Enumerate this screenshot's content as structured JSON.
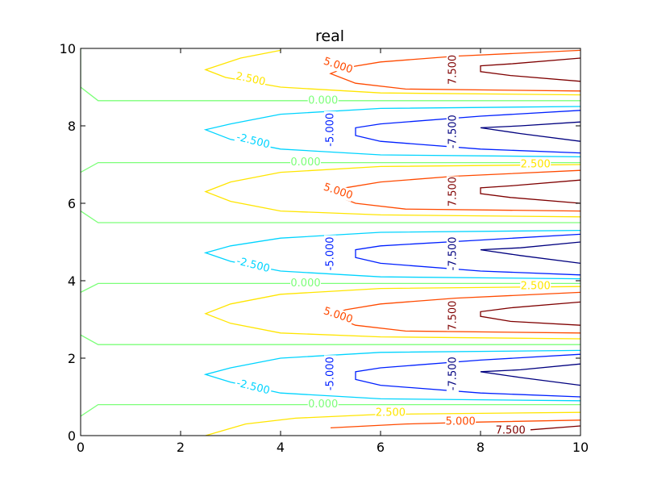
{
  "chart_data": {
    "type": "contour",
    "title": "real",
    "xlim": [
      0,
      10
    ],
    "ylim": [
      0,
      10
    ],
    "x_ticks": [
      "0",
      "2",
      "4",
      "6",
      "8",
      "10"
    ],
    "y_ticks": [
      "0",
      "2",
      "4",
      "6",
      "8",
      "10"
    ],
    "grid": false,
    "legend": "none",
    "levels": [
      {
        "level": -7.5,
        "color": "#00007f",
        "label": "-7.500"
      },
      {
        "level": -5.0,
        "color": "#0020ff",
        "label": "-5.000"
      },
      {
        "level": -2.5,
        "color": "#00d4ff",
        "label": "-2.500"
      },
      {
        "level": 0.0,
        "color": "#7cff79",
        "label": "0.000"
      },
      {
        "level": 2.5,
        "color": "#ffe500",
        "label": "2.500"
      },
      {
        "level": 5.0,
        "color": "#ff4a00",
        "label": "5.000"
      },
      {
        "level": 7.5,
        "color": "#7f0000",
        "label": "7.500"
      }
    ],
    "contour_lines": [
      {
        "level": 0.0,
        "points": [
          [
            0.0,
            10.0
          ],
          [
            0.0,
            9.0
          ],
          [
            0.35,
            8.65
          ],
          [
            10.0,
            8.65
          ]
        ]
      },
      {
        "level": 0.0,
        "points": [
          [
            0.0,
            6.8
          ],
          [
            0.35,
            7.05
          ],
          [
            10.0,
            7.05
          ]
        ]
      },
      {
        "level": 0.0,
        "points": [
          [
            0.0,
            5.8
          ],
          [
            0.35,
            5.5
          ],
          [
            10.0,
            5.5
          ]
        ]
      },
      {
        "level": 0.0,
        "points": [
          [
            0.0,
            3.7
          ],
          [
            0.35,
            3.93
          ],
          [
            10.0,
            3.93
          ]
        ]
      },
      {
        "level": 0.0,
        "points": [
          [
            0.0,
            2.6
          ],
          [
            0.35,
            2.35
          ],
          [
            10.0,
            2.35
          ]
        ]
      },
      {
        "level": 0.0,
        "points": [
          [
            0.0,
            0.5
          ],
          [
            0.35,
            0.8
          ],
          [
            10.0,
            0.8
          ]
        ]
      },
      {
        "level": 2.5,
        "points": [
          [
            4.0,
            9.95
          ],
          [
            3.2,
            9.75
          ],
          [
            2.5,
            9.45
          ],
          [
            2.9,
            9.25
          ],
          [
            4.0,
            9.0
          ],
          [
            6.0,
            8.85
          ],
          [
            10.0,
            8.8
          ]
        ]
      },
      {
        "level": 2.5,
        "points": [
          [
            10.0,
            7.0
          ],
          [
            6.0,
            6.95
          ],
          [
            4.0,
            6.8
          ],
          [
            3.0,
            6.55
          ],
          [
            2.5,
            6.3
          ],
          [
            3.0,
            6.05
          ],
          [
            4.0,
            5.8
          ],
          [
            6.0,
            5.7
          ],
          [
            10.0,
            5.65
          ]
        ]
      },
      {
        "level": 2.5,
        "points": [
          [
            10.0,
            3.85
          ],
          [
            6.0,
            3.8
          ],
          [
            4.0,
            3.65
          ],
          [
            3.0,
            3.4
          ],
          [
            2.5,
            3.15
          ],
          [
            3.0,
            2.9
          ],
          [
            4.0,
            2.65
          ],
          [
            6.0,
            2.55
          ],
          [
            10.0,
            2.5
          ]
        ]
      },
      {
        "level": 2.5,
        "points": [
          [
            2.5,
            0.0
          ],
          [
            3.3,
            0.3
          ],
          [
            4.3,
            0.45
          ],
          [
            6.0,
            0.55
          ],
          [
            10.0,
            0.6
          ]
        ]
      },
      {
        "level": -2.5,
        "points": [
          [
            10.0,
            8.5
          ],
          [
            6.0,
            8.45
          ],
          [
            4.0,
            8.3
          ],
          [
            3.0,
            8.05
          ],
          [
            2.5,
            7.9
          ],
          [
            3.0,
            7.65
          ],
          [
            4.0,
            7.4
          ],
          [
            6.0,
            7.25
          ],
          [
            10.0,
            7.2
          ]
        ]
      },
      {
        "level": -2.5,
        "points": [
          [
            10.0,
            5.3
          ],
          [
            6.0,
            5.25
          ],
          [
            4.0,
            5.1
          ],
          [
            3.0,
            4.9
          ],
          [
            2.5,
            4.72
          ],
          [
            3.0,
            4.5
          ],
          [
            4.0,
            4.25
          ],
          [
            6.0,
            4.1
          ],
          [
            10.0,
            4.05
          ]
        ]
      },
      {
        "level": -2.5,
        "points": [
          [
            10.0,
            2.2
          ],
          [
            6.0,
            2.15
          ],
          [
            4.0,
            2.0
          ],
          [
            3.0,
            1.75
          ],
          [
            2.5,
            1.58
          ],
          [
            3.0,
            1.38
          ],
          [
            4.0,
            1.1
          ],
          [
            6.0,
            0.95
          ],
          [
            10.0,
            0.9
          ]
        ]
      },
      {
        "level": 5.0,
        "points": [
          [
            10.0,
            9.95
          ],
          [
            7.5,
            9.8
          ],
          [
            6.0,
            9.65
          ],
          [
            5.3,
            9.5
          ],
          [
            5.0,
            9.35
          ],
          [
            5.5,
            9.1
          ],
          [
            6.5,
            8.95
          ],
          [
            10.0,
            8.9
          ]
        ]
      },
      {
        "level": 5.0,
        "points": [
          [
            10.0,
            6.85
          ],
          [
            7.5,
            6.7
          ],
          [
            6.0,
            6.55
          ],
          [
            5.3,
            6.4
          ],
          [
            5.0,
            6.25
          ],
          [
            5.5,
            6.0
          ],
          [
            6.5,
            5.85
          ],
          [
            10.0,
            5.8
          ]
        ]
      },
      {
        "level": 5.0,
        "points": [
          [
            10.0,
            3.7
          ],
          [
            7.5,
            3.55
          ],
          [
            6.0,
            3.4
          ],
          [
            5.3,
            3.25
          ],
          [
            5.0,
            3.1
          ],
          [
            5.5,
            2.85
          ],
          [
            6.5,
            2.7
          ],
          [
            10.0,
            2.65
          ]
        ]
      },
      {
        "level": 5.0,
        "points": [
          [
            5.0,
            0.2
          ],
          [
            6.5,
            0.3
          ],
          [
            8.0,
            0.35
          ],
          [
            10.0,
            0.4
          ]
        ]
      },
      {
        "level": -5.0,
        "points": [
          [
            10.0,
            8.4
          ],
          [
            8.0,
            8.25
          ],
          [
            6.0,
            8.05
          ],
          [
            5.5,
            7.95
          ],
          [
            5.5,
            7.75
          ],
          [
            6.0,
            7.6
          ],
          [
            8.0,
            7.4
          ],
          [
            10.0,
            7.3
          ]
        ]
      },
      {
        "level": -5.0,
        "points": [
          [
            10.0,
            5.2
          ],
          [
            8.0,
            5.05
          ],
          [
            6.0,
            4.9
          ],
          [
            5.5,
            4.8
          ],
          [
            5.5,
            4.6
          ],
          [
            6.0,
            4.45
          ],
          [
            8.0,
            4.25
          ],
          [
            10.0,
            4.15
          ]
        ]
      },
      {
        "level": -5.0,
        "points": [
          [
            10.0,
            2.1
          ],
          [
            8.0,
            1.95
          ],
          [
            6.0,
            1.75
          ],
          [
            5.5,
            1.65
          ],
          [
            5.5,
            1.45
          ],
          [
            6.0,
            1.3
          ],
          [
            8.0,
            1.1
          ],
          [
            10.0,
            1.0
          ]
        ]
      },
      {
        "level": 7.5,
        "points": [
          [
            10.0,
            9.75
          ],
          [
            8.6,
            9.6
          ],
          [
            8.0,
            9.55
          ],
          [
            8.0,
            9.4
          ],
          [
            8.6,
            9.3
          ],
          [
            10.0,
            9.15
          ]
        ]
      },
      {
        "level": 7.5,
        "points": [
          [
            10.0,
            6.6
          ],
          [
            8.6,
            6.45
          ],
          [
            8.0,
            6.4
          ],
          [
            8.0,
            6.25
          ],
          [
            8.6,
            6.15
          ],
          [
            10.0,
            6.0
          ]
        ]
      },
      {
        "level": 7.5,
        "points": [
          [
            10.0,
            3.45
          ],
          [
            8.6,
            3.3
          ],
          [
            8.0,
            3.2
          ],
          [
            8.0,
            3.08
          ],
          [
            8.6,
            2.95
          ],
          [
            10.0,
            2.85
          ]
        ]
      },
      {
        "level": 7.5,
        "points": [
          [
            9.0,
            0.15
          ],
          [
            10.0,
            0.25
          ]
        ]
      },
      {
        "level": -7.5,
        "points": [
          [
            10.0,
            8.1
          ],
          [
            8.8,
            8.0
          ],
          [
            8.0,
            7.95
          ],
          [
            8.8,
            7.8
          ],
          [
            10.0,
            7.6
          ]
        ]
      },
      {
        "level": -7.5,
        "points": [
          [
            10.0,
            5.0
          ],
          [
            8.8,
            4.85
          ],
          [
            8.0,
            4.8
          ],
          [
            8.8,
            4.65
          ],
          [
            10.0,
            4.45
          ]
        ]
      },
      {
        "level": -7.5,
        "points": [
          [
            10.0,
            1.85
          ],
          [
            8.8,
            1.7
          ],
          [
            8.0,
            1.65
          ],
          [
            8.8,
            1.5
          ],
          [
            10.0,
            1.3
          ]
        ]
      }
    ],
    "contour_labels": [
      {
        "text": "2.500",
        "x": 3.4,
        "y": 9.2,
        "angle": 12,
        "level": 2.5
      },
      {
        "text": "5.000",
        "x": 5.15,
        "y": 9.55,
        "angle": 18,
        "level": 5.0
      },
      {
        "text": "7.500",
        "x": 7.45,
        "y": 9.45,
        "angle": -90,
        "level": 7.5
      },
      {
        "text": "0.000",
        "x": 4.85,
        "y": 8.65,
        "angle": 0,
        "level": 0.0
      },
      {
        "text": "-5.000",
        "x": 5.0,
        "y": 7.9,
        "angle": -90,
        "level": -5.0
      },
      {
        "text": "-7.500",
        "x": 7.45,
        "y": 7.85,
        "angle": -90,
        "level": -7.5
      },
      {
        "text": "-2.500",
        "x": 3.45,
        "y": 7.6,
        "angle": 14,
        "level": -2.5
      },
      {
        "text": "0.000",
        "x": 4.5,
        "y": 7.05,
        "angle": 0,
        "level": 0.0
      },
      {
        "text": "2.500",
        "x": 9.1,
        "y": 7.0,
        "angle": 0,
        "level": 2.5
      },
      {
        "text": "5.000",
        "x": 5.15,
        "y": 6.3,
        "angle": 18,
        "level": 5.0
      },
      {
        "text": "7.500",
        "x": 7.45,
        "y": 6.3,
        "angle": -90,
        "level": 7.5
      },
      {
        "text": "-5.000",
        "x": 5.0,
        "y": 4.7,
        "angle": -90,
        "level": -5.0
      },
      {
        "text": "-7.500",
        "x": 7.45,
        "y": 4.7,
        "angle": -90,
        "level": -7.5
      },
      {
        "text": "-2.500",
        "x": 3.45,
        "y": 4.4,
        "angle": 14,
        "level": -2.5
      },
      {
        "text": "0.000",
        "x": 4.5,
        "y": 3.93,
        "angle": 0,
        "level": 0.0
      },
      {
        "text": "2.500",
        "x": 9.1,
        "y": 3.85,
        "angle": 0,
        "level": 2.5
      },
      {
        "text": "5.000",
        "x": 5.15,
        "y": 3.1,
        "angle": 18,
        "level": 5.0
      },
      {
        "text": "7.500",
        "x": 7.45,
        "y": 3.1,
        "angle": -90,
        "level": 7.5
      },
      {
        "text": "-5.000",
        "x": 5.0,
        "y": 1.6,
        "angle": -90,
        "level": -5.0
      },
      {
        "text": "-7.500",
        "x": 7.45,
        "y": 1.6,
        "angle": -90,
        "level": -7.5
      },
      {
        "text": "-2.500",
        "x": 3.45,
        "y": 1.25,
        "angle": 14,
        "level": -2.5
      },
      {
        "text": "0.000",
        "x": 4.85,
        "y": 0.8,
        "angle": 0,
        "level": 0.0
      },
      {
        "text": "2.500",
        "x": 6.2,
        "y": 0.58,
        "angle": 0,
        "level": 2.5
      },
      {
        "text": "5.000",
        "x": 7.6,
        "y": 0.35,
        "angle": 0,
        "level": 5.0
      },
      {
        "text": "7.500",
        "x": 8.6,
        "y": 0.13,
        "angle": 0,
        "level": 7.5
      }
    ]
  }
}
